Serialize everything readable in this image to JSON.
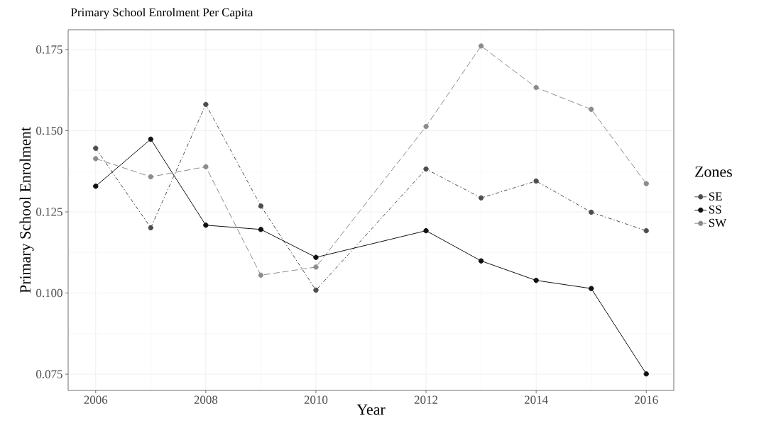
{
  "chart_data": {
    "type": "line",
    "title": "Primary School Enrolment Per Capita",
    "xlabel": "Year",
    "ylabel": "Primary School Enrolment",
    "legend_title": "Zones",
    "x": [
      2006,
      2007,
      2008,
      2009,
      2010,
      2012,
      2013,
      2014,
      2015,
      2016
    ],
    "series": [
      {
        "name": "SE",
        "color": "#4d4d4d",
        "line_style": "dashdot",
        "values": [
          0.1446,
          0.1201,
          0.1581,
          0.1268,
          0.1009,
          0.1382,
          0.1293,
          0.1345,
          0.1249,
          0.1192
        ]
      },
      {
        "name": "SS",
        "color": "#111111",
        "line_style": "solid",
        "values": [
          0.1329,
          0.1474,
          0.1209,
          0.1196,
          0.111,
          0.1192,
          0.1099,
          0.1039,
          0.1014,
          0.0751
        ]
      },
      {
        "name": "SW",
        "color": "#8c8c8c",
        "line_style": "longdash",
        "values": [
          0.1414,
          0.1358,
          0.1389,
          0.1055,
          0.108,
          0.1513,
          0.1761,
          0.1633,
          0.1566,
          0.1337
        ]
      }
    ],
    "xlim": [
      2005.5,
      2016.5
    ],
    "ylim": [
      0.07,
      0.1811
    ],
    "xticks": [
      2006,
      2008,
      2010,
      2012,
      2014,
      2016
    ],
    "yticks": [
      {
        "value": 0.075,
        "label": "0.075"
      },
      {
        "value": 0.1,
        "label": "0.100"
      },
      {
        "value": 0.125,
        "label": "0.125"
      },
      {
        "value": 0.15,
        "label": "0.150"
      },
      {
        "value": 0.175,
        "label": "0.175"
      }
    ],
    "grid": true,
    "legend": "right",
    "marker": "circle"
  }
}
